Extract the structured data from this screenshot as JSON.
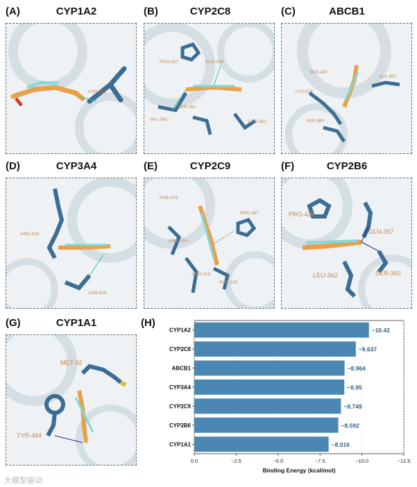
{
  "panels": [
    {
      "letter": "(A)",
      "title": "CYP1A2",
      "residues": [
        "ASN-312"
      ]
    },
    {
      "letter": "(B)",
      "title": "CYP2C8",
      "residues": [
        "PRO-427",
        "GLN-356",
        "SER-361",
        "VAL-360",
        "LEU-362"
      ]
    },
    {
      "letter": "(C)",
      "title": "ABCB1",
      "residues": [
        "LYS-974",
        "ASP-980",
        "SER-487",
        "ALA-987"
      ]
    },
    {
      "letter": "(D)",
      "title": "CYP3A4",
      "residues": [
        "ARG-418",
        "ASN-426"
      ]
    },
    {
      "letter": "(E)",
      "title": "CYP2C9",
      "residues": [
        "PHE-476",
        "PRO-367",
        "ASN-214",
        "ARG-213",
        "PHE-100"
      ]
    },
    {
      "letter": "(F)",
      "title": "CYP2B6",
      "residues": [
        "PRO-428",
        "GLN-357",
        "LEU-362",
        "SER-360"
      ]
    },
    {
      "letter": "(G)",
      "title": "CYP1A1",
      "residues": [
        "MET-92",
        "TYR-494"
      ]
    }
  ],
  "chart_letter": "(H)",
  "chart_data": {
    "type": "bar",
    "orientation": "horizontal",
    "categories": [
      "CYP1A2",
      "CYP2C8",
      "ABCB1",
      "CYP3A4",
      "CYP2C9",
      "CYP2B6",
      "CYP1A1"
    ],
    "values": [
      -10.42,
      -9.637,
      -8.964,
      -8.95,
      -8.749,
      -8.592,
      -8.016
    ],
    "value_labels": [
      "−10.42",
      "−9.637",
      "−8.964",
      "−8.95",
      "−8.749",
      "−8.592",
      "−8.016"
    ],
    "xlabel": "Binding Energy (kcal/mol)",
    "xlim": [
      0,
      -12.5
    ],
    "x_axis_inverted": true,
    "xticks": [
      0,
      -2.5,
      -5,
      -7.5,
      -10,
      -12.5
    ],
    "xtick_labels": [
      "0.0",
      "−2.5",
      "−5.0",
      "−7.5",
      "−10.0",
      "−12.5"
    ],
    "grid": true,
    "bar_color": "#4a87b3",
    "label_color": "#2f5f8a"
  },
  "watermark": "大模型驱动"
}
